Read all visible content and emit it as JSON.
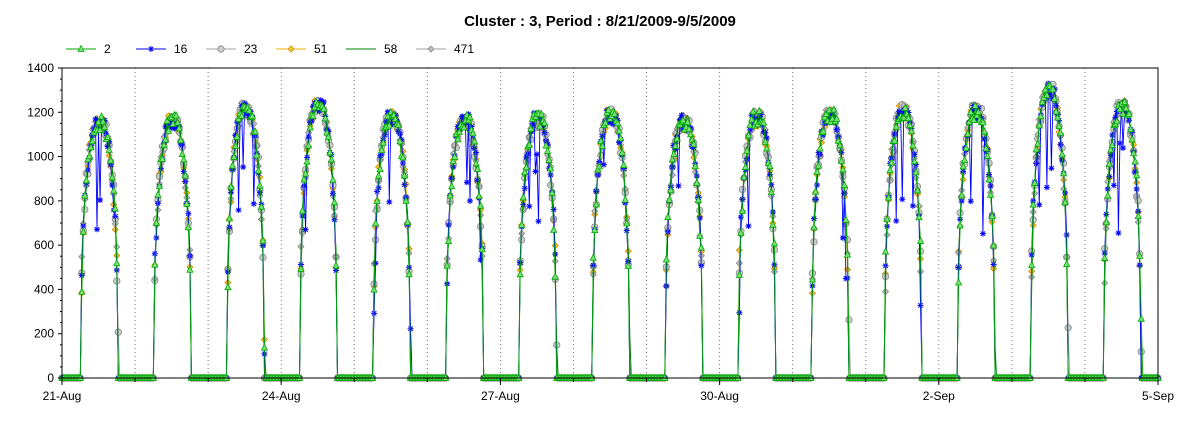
{
  "chart_data": {
    "type": "line",
    "title": "Cluster : 3, Period : 8/21/2009-9/5/2009",
    "xlabel": "",
    "ylabel": "",
    "x_range": [
      "2009-08-21",
      "2009-09-05"
    ],
    "ylim": [
      0,
      1400
    ],
    "yticks": [
      0,
      200,
      400,
      600,
      800,
      1000,
      1200,
      1400
    ],
    "xticks": [
      {
        "date": "2009-08-21",
        "label": "21-Aug"
      },
      {
        "date": "2009-08-24",
        "label": "24-Aug"
      },
      {
        "date": "2009-08-27",
        "label": "27-Aug"
      },
      {
        "date": "2009-08-30",
        "label": "30-Aug"
      },
      {
        "date": "2009-09-02",
        "label": "2-Sep"
      },
      {
        "date": "2009-09-05",
        "label": "5-Sep"
      }
    ],
    "legend_placement": "top-left",
    "grid": "vertical dotted lines at day boundaries",
    "daily_peak_estimates": [
      {
        "date": "2009-08-21",
        "peak": 1240
      },
      {
        "date": "2009-08-22",
        "peak": 1240
      },
      {
        "date": "2009-08-23",
        "peak": 1300
      },
      {
        "date": "2009-08-24",
        "peak": 1320
      },
      {
        "date": "2009-08-25",
        "peak": 1260
      },
      {
        "date": "2009-08-26",
        "peak": 1250
      },
      {
        "date": "2009-08-27",
        "peak": 1250
      },
      {
        "date": "2009-08-28",
        "peak": 1270
      },
      {
        "date": "2009-08-29",
        "peak": 1240
      },
      {
        "date": "2009-08-30",
        "peak": 1260
      },
      {
        "date": "2009-08-31",
        "peak": 1270
      },
      {
        "date": "2009-09-01",
        "peak": 1290
      },
      {
        "date": "2009-09-02",
        "peak": 1290
      },
      {
        "date": "2009-09-03",
        "peak": 1390
      },
      {
        "date": "2009-09-04",
        "peak": 1310
      }
    ],
    "series": [
      {
        "name": "2",
        "color": "#00aa00",
        "marker": "triangle"
      },
      {
        "name": "16",
        "color": "#0000ff",
        "marker": "asterisk"
      },
      {
        "name": "23",
        "color": "#a0a0a0",
        "marker": "circle"
      },
      {
        "name": "51",
        "color": "#f0b000",
        "marker": "diamond"
      },
      {
        "name": "58",
        "color": "#008000",
        "marker": "none"
      },
      {
        "name": "471",
        "color": "#a0a0a0",
        "marker": "diamond"
      }
    ]
  }
}
